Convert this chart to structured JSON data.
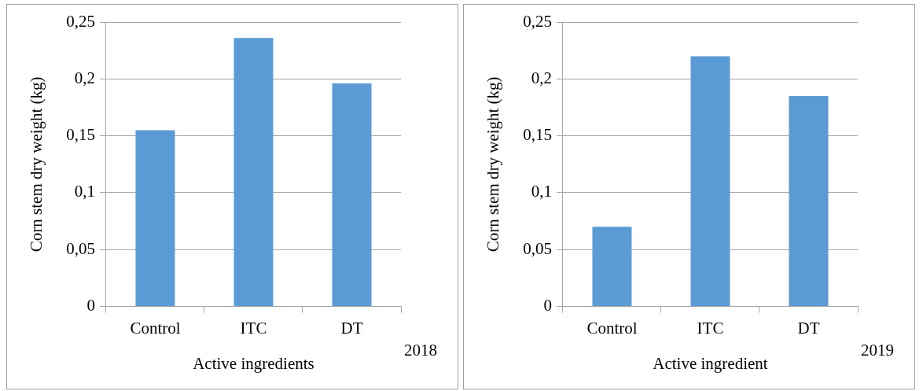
{
  "chart_data": [
    {
      "type": "bar",
      "xlabel": "Active ingredients",
      "ylabel": "Corn stem dry weight (kg)",
      "annotations": [
        "2018"
      ],
      "categories": [
        "Control",
        "ITC",
        "DT"
      ],
      "values": [
        0.155,
        0.236,
        0.196
      ],
      "color": "#5b9bd5",
      "ylim": [
        0,
        0.25
      ],
      "yticks": [
        0,
        {
          "value": 0.05,
          "label": "0,05"
        },
        {
          "value": 0.1,
          "label": "0,1"
        },
        {
          "value": 0.15,
          "label": "0,15"
        },
        {
          "value": 0.2,
          "label": "0,2"
        },
        {
          "value": 0.25,
          "label": "0,25"
        }
      ],
      "grid": "y",
      "legend": false
    },
    {
      "type": "bar",
      "xlabel": "Active ingredient",
      "ylabel": "Corn stem dry weight (kg)",
      "annotations": [
        "2019"
      ],
      "categories": [
        "Control",
        "ITC",
        "DT"
      ],
      "values": [
        0.07,
        0.22,
        0.185
      ],
      "color": "#5b9bd5",
      "ylim": [
        0,
        0.25
      ],
      "yticks": [
        0,
        {
          "value": 0.05,
          "label": "0,05"
        },
        {
          "value": 0.1,
          "label": "0,1"
        },
        {
          "value": 0.15,
          "label": "0,15"
        },
        {
          "value": 0.2,
          "label": "0,2"
        },
        {
          "value": 0.25,
          "label": "0,25"
        }
      ],
      "grid": "y",
      "legend": false
    }
  ]
}
